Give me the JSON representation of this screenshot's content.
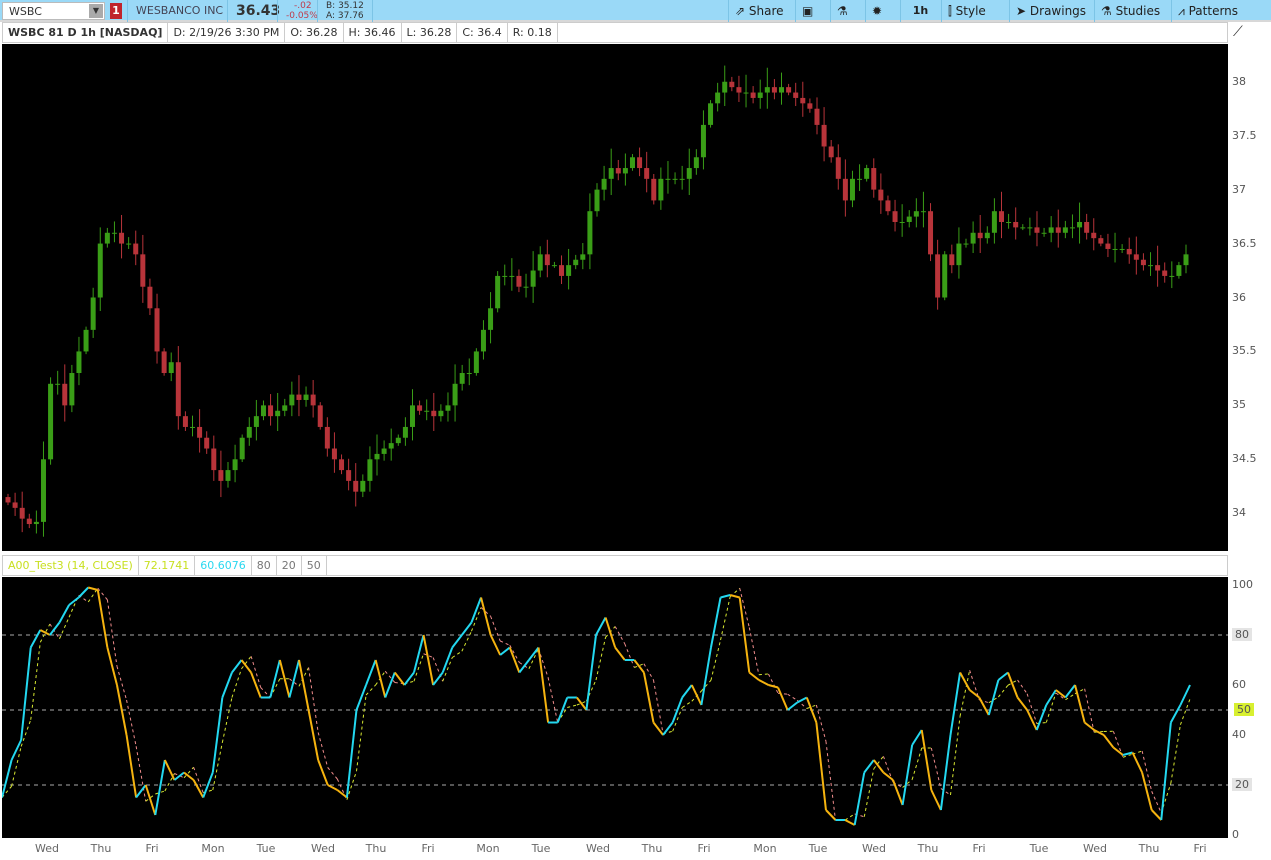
{
  "toolbar": {
    "symbol": "WSBC",
    "alert_count": "1",
    "company": "WESBANCO INC",
    "last": "36.43",
    "change": "-.02",
    "change_pct": "-0.05%",
    "bid": "B: 35.12",
    "ask": "A: 37.76",
    "buttons": [
      {
        "label": "Share",
        "icon": "share-icon"
      },
      {
        "label": "",
        "icon": "flexible-grid-icon"
      },
      {
        "label": "",
        "icon": "flask-icon"
      },
      {
        "label": "",
        "icon": "gear-icon"
      },
      {
        "label": "1h",
        "icon": ""
      },
      {
        "label": "Style",
        "icon": "candle-style-icon"
      },
      {
        "label": "Drawings",
        "icon": "cursor-icon"
      },
      {
        "label": "Studies",
        "icon": "flask-icon"
      },
      {
        "label": "Patterns",
        "icon": "patterns-icon"
      }
    ]
  },
  "header": {
    "title": "WSBC 81 D 1h [NASDAQ]",
    "date": "D: 2/19/26 3:30 PM",
    "open": "O: 36.28",
    "high": "H: 36.46",
    "low": "L: 36.28",
    "close": "C: 36.4",
    "range": "R: 0.18"
  },
  "indicator": {
    "name": "A00_Test3 (14, CLOSE)",
    "value1": "72.1741",
    "value2": "60.6076",
    "level_high": "80",
    "level_low": "20",
    "level_mid": "50",
    "mid_badge": "50"
  },
  "colors": {
    "up": "#3a9e17",
    "down": "#b8343a",
    "osc_up": "#23d8f0",
    "osc_down": "#f5b30f",
    "signal_up": "#d8e830",
    "signal_down": "#f08c8c",
    "toolbar": "#9ad9f7"
  },
  "chart_data": [
    {
      "type": "candlestick",
      "yticks": [
        "38",
        "37.5",
        "37",
        "36.5",
        "36",
        "35.5",
        "35",
        "34.5",
        "34"
      ],
      "ylim": [
        33.65,
        38.35
      ],
      "closes": [
        34.1,
        34.05,
        33.95,
        33.9,
        33.92,
        34.5,
        35.2,
        35.2,
        35.0,
        35.3,
        35.5,
        35.7,
        36.0,
        36.5,
        36.6,
        36.6,
        36.5,
        36.5,
        36.4,
        36.1,
        35.9,
        35.5,
        35.3,
        35.4,
        34.9,
        34.8,
        34.8,
        34.7,
        34.6,
        34.4,
        34.3,
        34.4,
        34.5,
        34.7,
        34.8,
        34.9,
        35.0,
        34.9,
        34.95,
        35.0,
        35.1,
        35.05,
        35.1,
        35.0,
        34.8,
        34.6,
        34.5,
        34.4,
        34.3,
        34.2,
        34.3,
        34.5,
        34.55,
        34.6,
        34.65,
        34.7,
        34.8,
        35.0,
        34.95,
        34.95,
        34.9,
        34.95,
        35.0,
        35.2,
        35.3,
        35.3,
        35.5,
        35.7,
        35.9,
        36.2,
        36.2,
        36.2,
        36.1,
        36.1,
        36.25,
        36.4,
        36.3,
        36.3,
        36.2,
        36.3,
        36.35,
        36.4,
        36.8,
        37.0,
        37.1,
        37.2,
        37.15,
        37.2,
        37.3,
        37.2,
        37.1,
        36.9,
        37.1,
        37.1,
        37.1,
        37.1,
        37.2,
        37.3,
        37.6,
        37.8,
        37.9,
        38.0,
        37.95,
        37.9,
        37.9,
        37.85,
        37.9,
        37.95,
        37.9,
        37.95,
        37.9,
        37.85,
        37.8,
        37.75,
        37.6,
        37.4,
        37.3,
        37.1,
        36.9,
        37.1,
        37.1,
        37.2,
        37.0,
        36.9,
        36.8,
        36.7,
        36.7,
        36.75,
        36.8,
        36.8,
        36.4,
        36.0,
        36.4,
        36.3,
        36.5,
        36.5,
        36.6,
        36.55,
        36.6,
        36.8,
        36.7,
        36.7,
        36.65,
        36.65,
        36.65,
        36.6,
        36.6,
        36.65,
        36.6,
        36.65,
        36.65,
        36.7,
        36.6,
        36.55,
        36.5,
        36.45,
        36.45,
        36.45,
        36.4,
        36.35,
        36.3,
        36.3,
        36.25,
        36.2,
        36.2,
        36.3,
        36.4
      ]
    },
    {
      "type": "line",
      "yticks": [
        "100",
        "80",
        "60",
        "50",
        "40",
        "20",
        "0"
      ],
      "ylim": [
        0,
        100
      ],
      "levels": [
        80,
        50,
        20
      ],
      "values": [
        15,
        30,
        38,
        75,
        82,
        80,
        85,
        92,
        95,
        99,
        98,
        75,
        60,
        40,
        15,
        20,
        8,
        30,
        22,
        25,
        22,
        15,
        25,
        55,
        65,
        70,
        65,
        55,
        55,
        70,
        55,
        70,
        50,
        30,
        20,
        18,
        15,
        50,
        60,
        70,
        55,
        65,
        60,
        65,
        80,
        60,
        65,
        75,
        80,
        85,
        95,
        80,
        72,
        75,
        65,
        70,
        75,
        45,
        45,
        55,
        55,
        50,
        80,
        87,
        75,
        70,
        70,
        65,
        45,
        40,
        45,
        55,
        60,
        52,
        75,
        95,
        96,
        95,
        65,
        62,
        60,
        59,
        50,
        53,
        55,
        45,
        10,
        6,
        6,
        4,
        25,
        30,
        25,
        22,
        12,
        36,
        42,
        18,
        10,
        40,
        65,
        58,
        55,
        48,
        62,
        65,
        55,
        50,
        42,
        52,
        58,
        55,
        60,
        45,
        42,
        40,
        35,
        32,
        33,
        25,
        10,
        6,
        45,
        52,
        60
      ]
    }
  ],
  "xaxis": [
    "Wed",
    "Thu",
    "Fri",
    "Mon",
    "Tue",
    "Wed",
    "Thu",
    "Fri",
    "Mon",
    "Tue",
    "Wed",
    "Thu",
    "Fri",
    "Mon",
    "Tue",
    "Wed",
    "Thu",
    "Fri",
    "Tue",
    "Wed",
    "Thu",
    "Fri"
  ]
}
